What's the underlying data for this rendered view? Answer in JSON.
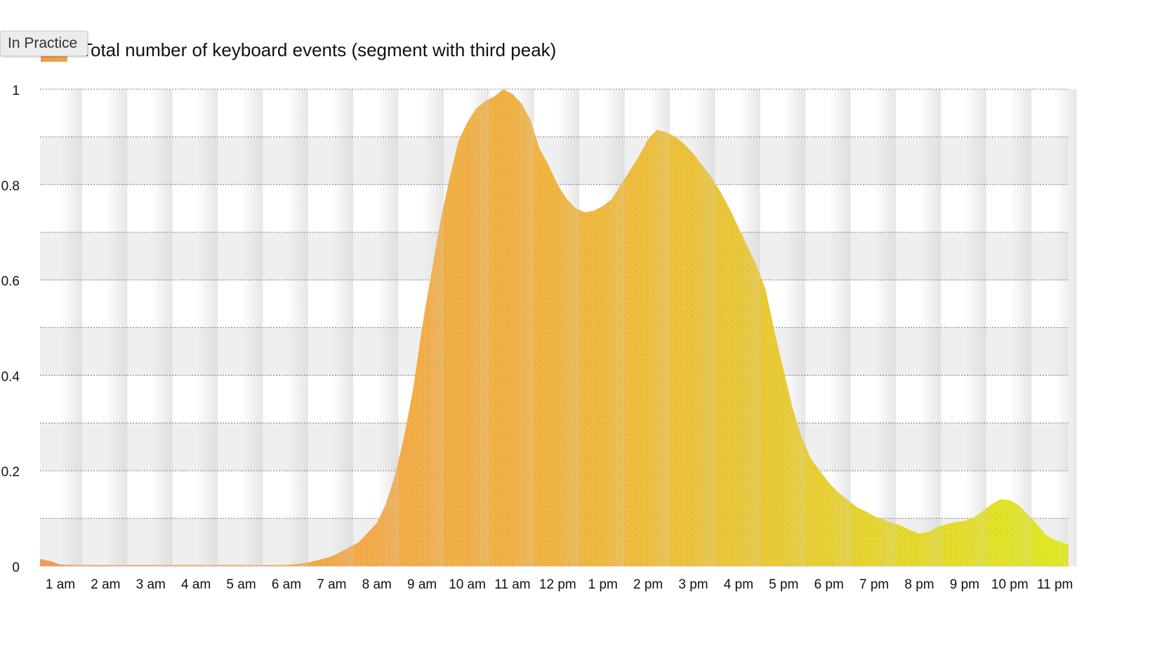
{
  "badge": {
    "label": "In Practice"
  },
  "colors": {
    "area_start": "#f59a58",
    "area_mid": "#f0b443",
    "area_end": "#dfe826",
    "band_dark": "#efefef",
    "band_light": "#ffffff",
    "stripe": "#d2d2d2",
    "gridline": "#444444"
  },
  "chart_data": {
    "type": "area",
    "title": "",
    "xlabel": "",
    "ylabel": "",
    "ylim": [
      0,
      1
    ],
    "xlim": [
      0.55,
      23.3
    ],
    "grid": true,
    "legend_placement": "top-left",
    "legend": [
      "Total number of keyboard events (segment with third peak)"
    ],
    "y_ticks": [
      "0",
      "0.2",
      "0.4",
      "0.6",
      "0.8",
      "1"
    ],
    "y_tick_values": [
      0,
      0.2,
      0.4,
      0.6,
      0.8,
      1
    ],
    "x_ticks": [
      "1 am",
      "2 am",
      "3 am",
      "4 am",
      "5 am",
      "6 am",
      "7 am",
      "8 am",
      "9 am",
      "10 am",
      "11 am",
      "12 pm",
      "1 pm",
      "2 pm",
      "3 pm",
      "4 pm",
      "5 pm",
      "6 pm",
      "7 pm",
      "8 pm",
      "9 pm",
      "10 pm",
      "11 pm"
    ],
    "x_tick_values": [
      1,
      2,
      3,
      4,
      5,
      6,
      7,
      8,
      9,
      10,
      11,
      12,
      13,
      14,
      15,
      16,
      17,
      18,
      19,
      20,
      21,
      22,
      23
    ],
    "series": [
      {
        "name": "Total number of keyboard events (segment with third peak)",
        "x": [
          0.55,
          0.8,
          1.0,
          1.5,
          2.0,
          3.0,
          4.0,
          5.0,
          5.5,
          6.0,
          6.3,
          6.5,
          6.8,
          7.0,
          7.3,
          7.6,
          7.8,
          8.0,
          8.2,
          8.4,
          8.6,
          8.8,
          9.0,
          9.2,
          9.4,
          9.6,
          9.8,
          10.0,
          10.2,
          10.4,
          10.6,
          10.8,
          11.0,
          11.2,
          11.4,
          11.6,
          11.8,
          12.0,
          12.2,
          12.4,
          12.6,
          12.8,
          13.0,
          13.2,
          13.4,
          13.6,
          13.8,
          14.0,
          14.2,
          14.4,
          14.6,
          14.8,
          15.0,
          15.2,
          15.4,
          15.6,
          15.8,
          16.0,
          16.2,
          16.4,
          16.6,
          16.8,
          17.0,
          17.2,
          17.4,
          17.6,
          17.8,
          18.0,
          18.2,
          18.4,
          18.6,
          18.8,
          19.0,
          19.2,
          19.4,
          19.6,
          19.8,
          20.0,
          20.2,
          20.4,
          20.6,
          20.8,
          21.0,
          21.2,
          21.4,
          21.6,
          21.8,
          22.0,
          22.2,
          22.4,
          22.6,
          22.8,
          23.0,
          23.3
        ],
        "y": [
          0.015,
          0.01,
          0.003,
          0.002,
          0.002,
          0.002,
          0.002,
          0.002,
          0.002,
          0.002,
          0.005,
          0.008,
          0.015,
          0.02,
          0.035,
          0.05,
          0.07,
          0.09,
          0.13,
          0.19,
          0.27,
          0.37,
          0.5,
          0.61,
          0.72,
          0.81,
          0.89,
          0.93,
          0.96,
          0.975,
          0.985,
          1.0,
          0.99,
          0.97,
          0.935,
          0.875,
          0.84,
          0.8,
          0.77,
          0.75,
          0.742,
          0.745,
          0.755,
          0.77,
          0.8,
          0.83,
          0.86,
          0.895,
          0.915,
          0.91,
          0.9,
          0.885,
          0.865,
          0.84,
          0.815,
          0.785,
          0.75,
          0.71,
          0.67,
          0.63,
          0.58,
          0.49,
          0.41,
          0.33,
          0.27,
          0.225,
          0.2,
          0.175,
          0.155,
          0.14,
          0.125,
          0.115,
          0.105,
          0.098,
          0.09,
          0.085,
          0.075,
          0.068,
          0.072,
          0.082,
          0.088,
          0.092,
          0.095,
          0.102,
          0.115,
          0.13,
          0.14,
          0.138,
          0.128,
          0.108,
          0.088,
          0.065,
          0.055,
          0.045
        ]
      }
    ]
  }
}
